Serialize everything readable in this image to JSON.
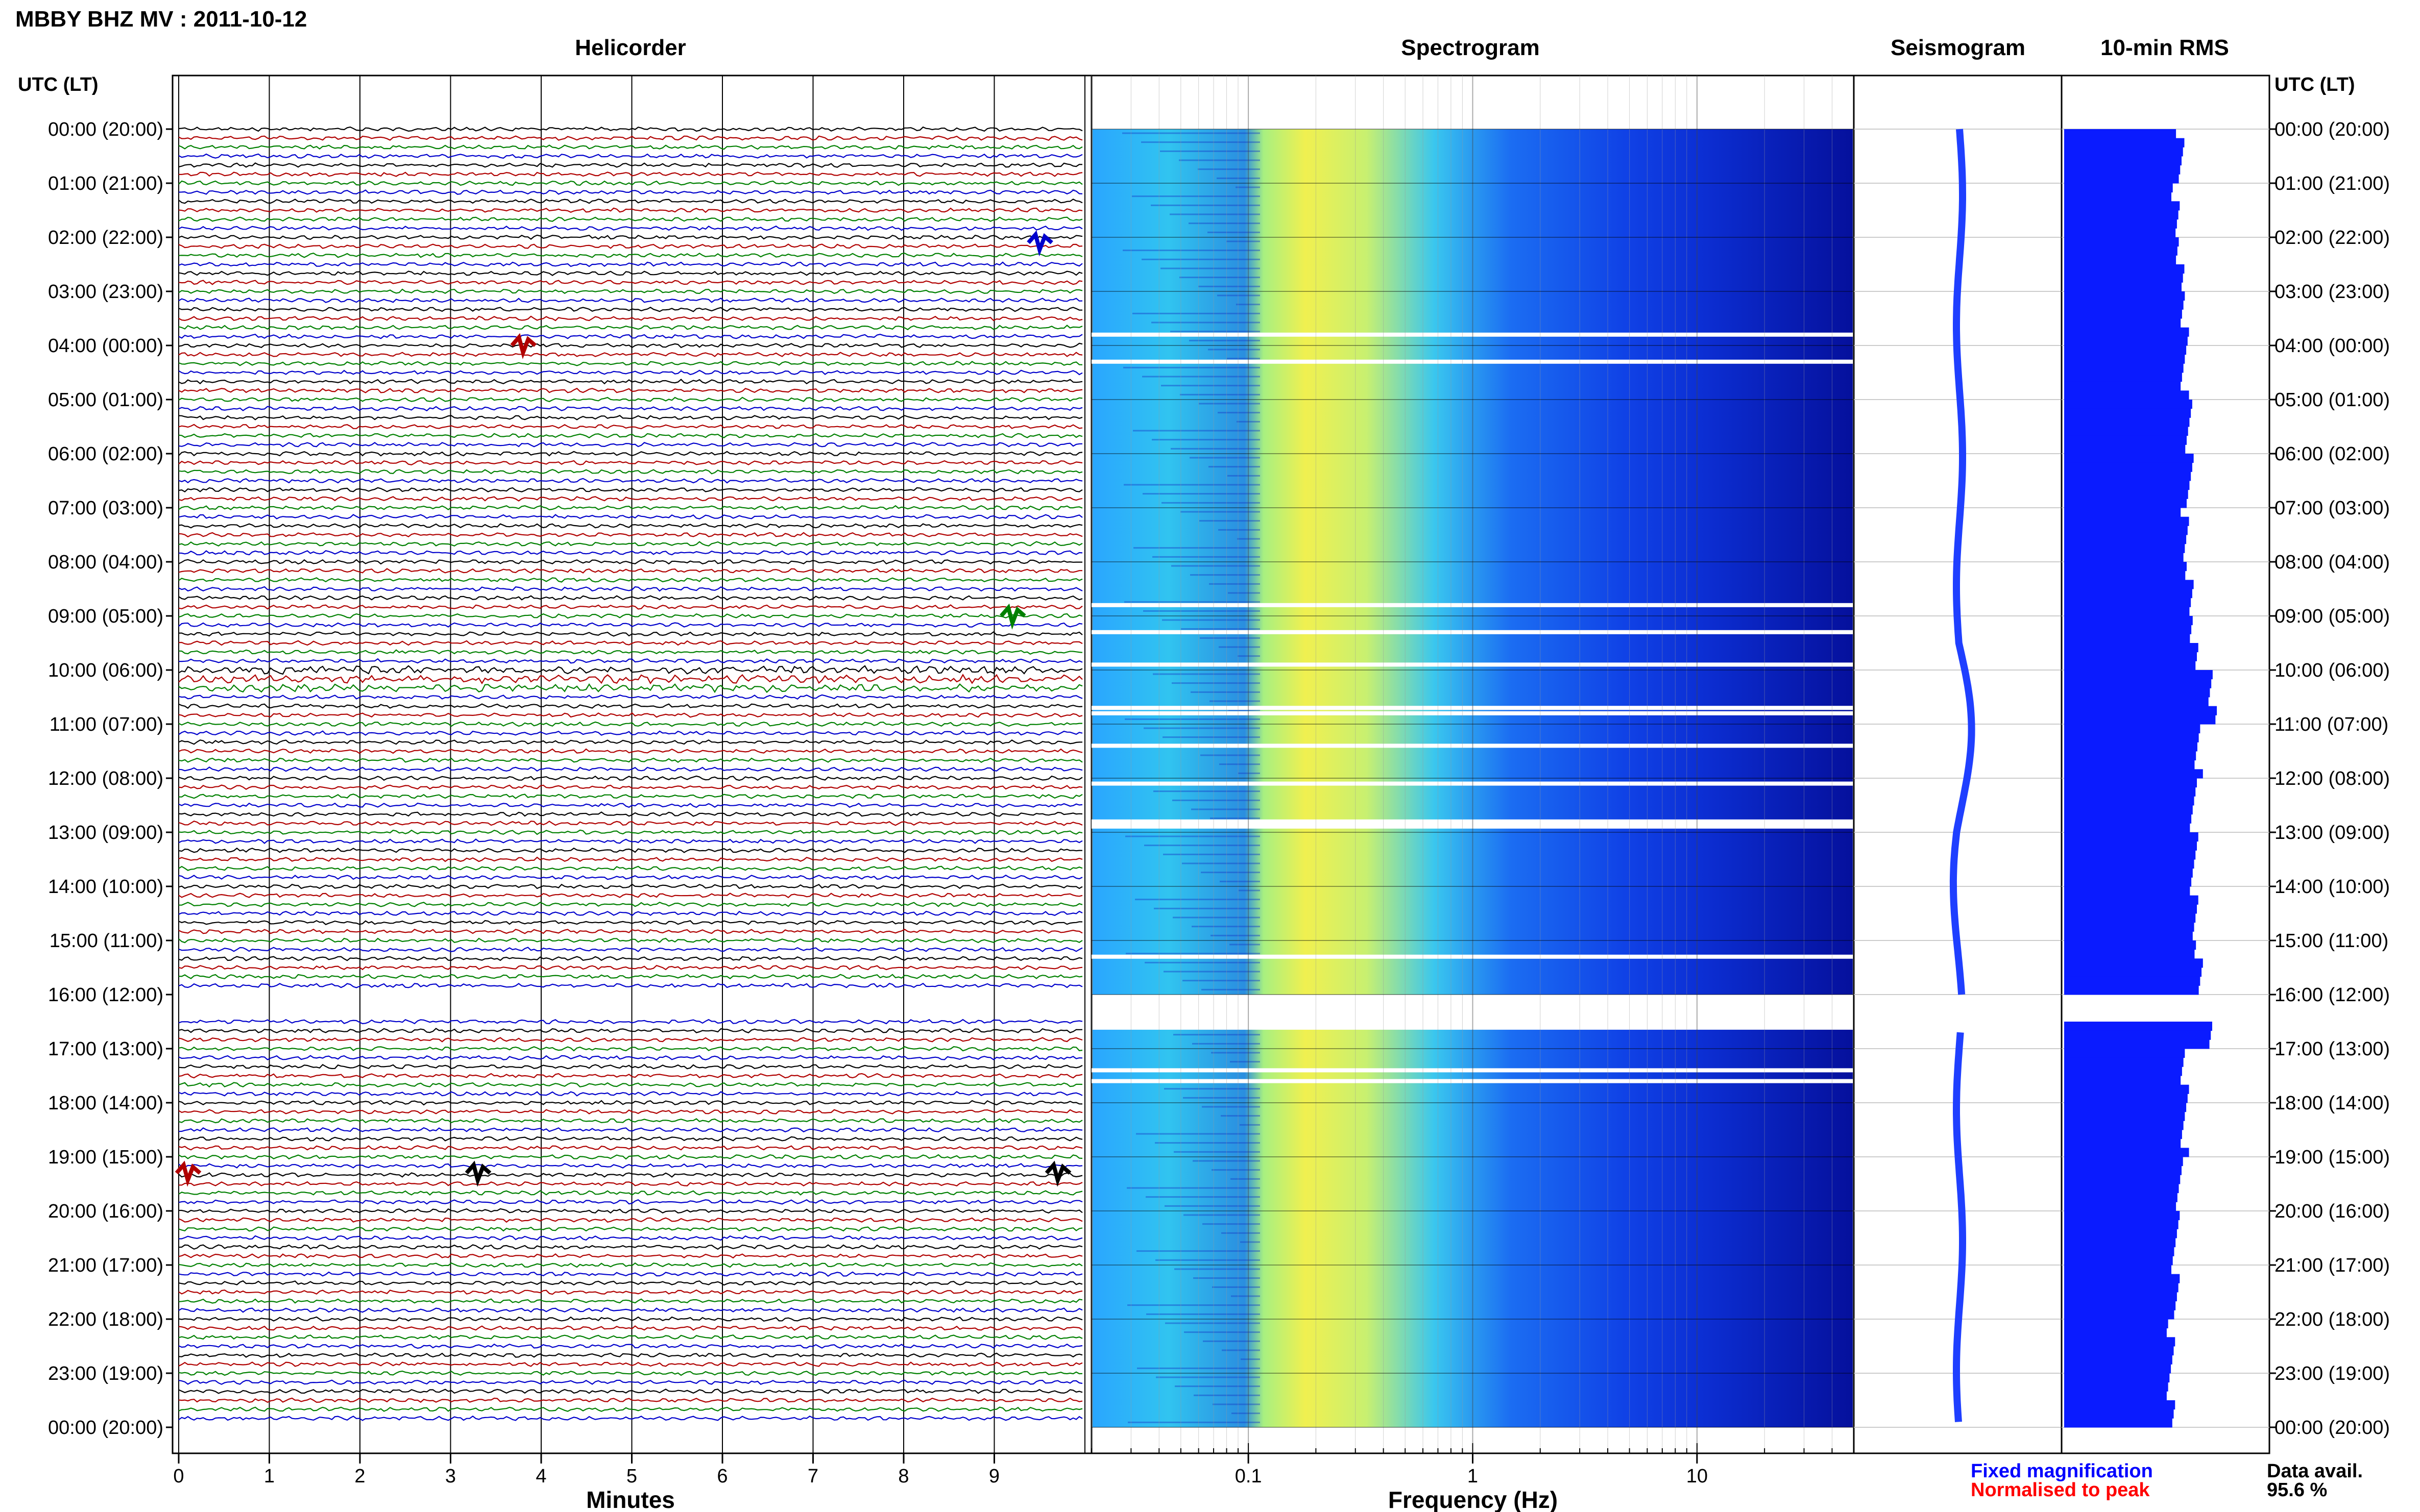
{
  "title": "MBBY BHZ MV : 2011-10-12",
  "panels": {
    "helicorder": "Helicorder",
    "spectrogram": "Spectrogram",
    "seismogram": "Seismogram",
    "rms": "10-min RMS"
  },
  "time_axis_label": "UTC (LT)",
  "hour_labels": [
    "00:00 (20:00)",
    "01:00 (21:00)",
    "02:00 (22:00)",
    "03:00 (23:00)",
    "04:00 (00:00)",
    "05:00 (01:00)",
    "06:00 (02:00)",
    "07:00 (03:00)",
    "08:00 (04:00)",
    "09:00 (05:00)",
    "10:00 (06:00)",
    "11:00 (07:00)",
    "12:00 (08:00)",
    "13:00 (09:00)",
    "14:00 (10:00)",
    "15:00 (11:00)",
    "16:00 (12:00)",
    "17:00 (13:00)",
    "18:00 (14:00)",
    "19:00 (15:00)",
    "20:00 (16:00)",
    "21:00 (17:00)",
    "22:00 (18:00)",
    "23:00 (19:00)",
    "00:00 (20:00)"
  ],
  "helicorder_axis": {
    "label": "Minutes",
    "ticks": [
      "0",
      "1",
      "2",
      "3",
      "4",
      "5",
      "6",
      "7",
      "8",
      "9"
    ]
  },
  "spectrogram_axis": {
    "label": "Frequency (Hz)",
    "ticks": [
      "0.1",
      "1",
      "10"
    ],
    "scale": "log",
    "range_hz": [
      0.02,
      50
    ]
  },
  "colors": {
    "trace_cycle": [
      "#000000",
      "#b00000",
      "#008000",
      "#0000cc"
    ],
    "seismogram": "#1f3fff",
    "rms": "#0a1bff",
    "legend_fixed": "#0000ff",
    "legend_norm": "#ff0000"
  },
  "legend": {
    "fixed": "Fixed magnification",
    "normalised": "Normalised to peak"
  },
  "data_availability": {
    "label": "Data avail.",
    "value": "95.6 %"
  },
  "chart_data": [
    {
      "type": "line",
      "name": "helicorder",
      "xlabel": "Minutes",
      "xlim": [
        0,
        10
      ],
      "row_minutes": 10,
      "rows_per_hour": 6,
      "hours": 24,
      "gaps": [
        {
          "start_h": 16.0,
          "end_h": 16.5
        }
      ],
      "events": [
        {
          "hour": 4.0,
          "minute": 3.8,
          "color": "#b00000"
        },
        {
          "hour": 9.0,
          "minute": 9.2,
          "color": "#008000"
        },
        {
          "hour": 2.1,
          "minute": 9.5,
          "color": "#0000cc"
        },
        {
          "hour": 19.3,
          "minute": 0.1,
          "color": "#b00000"
        },
        {
          "hour": 19.3,
          "minute": 3.3,
          "color": "#000000"
        },
        {
          "hour": 19.3,
          "minute": 9.7,
          "color": "#000000"
        }
      ]
    },
    {
      "type": "heatmap",
      "name": "spectrogram",
      "xlabel": "Frequency (Hz)",
      "xscale": "log",
      "xlim": [
        0.02,
        50
      ],
      "band_peak_hz": [
        0.15,
        0.5
      ],
      "gap_rows_hours": [
        3.8,
        4.3,
        8.8,
        9.3,
        9.9,
        10.7,
        10.8,
        11.4,
        12.1,
        12.8,
        15.3,
        17.4,
        17.6
      ]
    },
    {
      "type": "line",
      "name": "seismogram",
      "hours": 24
    },
    {
      "type": "bar",
      "name": "10-min RMS",
      "orientation": "horizontal",
      "values_hourly": [
        1.25,
        1.2,
        1.25,
        1.3,
        1.3,
        1.35,
        1.35,
        1.3,
        1.35,
        1.4,
        1.6,
        1.45,
        1.4,
        1.4,
        1.4,
        1.45,
        1.55,
        1.3,
        1.3,
        1.25,
        1.2,
        1.2,
        1.15,
        1.15
      ],
      "gap": {
        "start_h": 16.0,
        "end_h": 16.4
      }
    }
  ]
}
